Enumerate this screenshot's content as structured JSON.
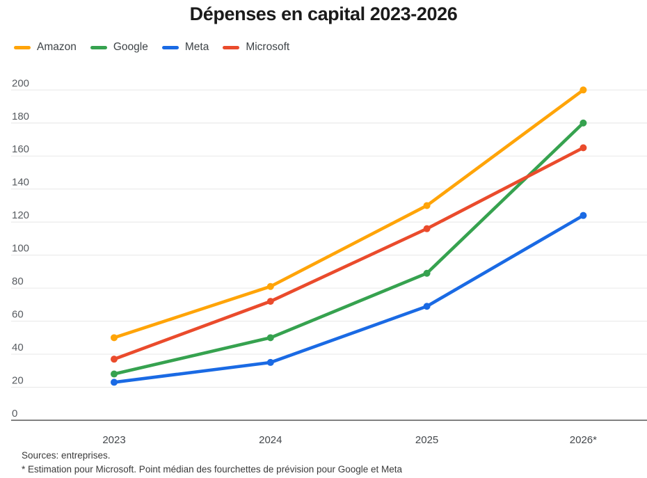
{
  "chart_data": {
    "type": "line",
    "title": "Dépenses en capital 2023-2026",
    "categories": [
      "2023",
      "2024",
      "2025",
      "2026*"
    ],
    "series": [
      {
        "name": "Amazon",
        "color": "#FFA408",
        "values": [
          50,
          81,
          130,
          200
        ]
      },
      {
        "name": "Google",
        "color": "#36A24F",
        "values": [
          28,
          50,
          89,
          180
        ]
      },
      {
        "name": "Meta",
        "color": "#1A6AE4",
        "values": [
          23,
          35,
          69,
          124
        ]
      },
      {
        "name": "Microsoft",
        "color": "#EA4B2C",
        "values": [
          37,
          72,
          116,
          165
        ]
      }
    ],
    "ylim": [
      0,
      200
    ],
    "ytick_step": 20,
    "yticks": [
      0,
      20,
      40,
      60,
      80,
      100,
      120,
      140,
      160,
      180,
      200
    ],
    "grid": "horizontal",
    "legend_position": "top-left",
    "colors": {
      "gridline": "#E9E9E9",
      "axis_line": "#6F6F6F",
      "title_text": "#1B1B1B",
      "tick_text": "#585C61"
    }
  },
  "footer": {
    "sources": "Sources: entreprises.",
    "note": "* Estimation pour Microsoft. Point médian des fourchettes de prévision pour Google et Meta"
  }
}
